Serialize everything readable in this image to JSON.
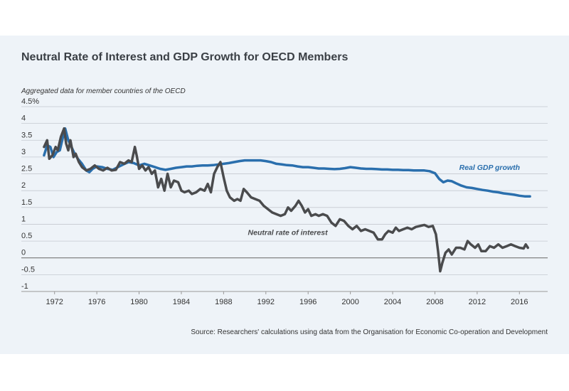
{
  "chart_data": {
    "type": "line",
    "title": "Neutral Rate of Interest and GDP Growth for OECD Members",
    "subtitle": "Aggregated data for member countries of the OECD",
    "source": "Source: Researchers' calculations using data from the Organisation for Economic Co-operation and Development",
    "xlabel": "",
    "ylabel": "",
    "xlim": [
      1970,
      2018
    ],
    "ylim": [
      -1,
      4.5
    ],
    "y_ticks": [
      {
        "value": 4.5,
        "label": "4.5%"
      },
      {
        "value": 4,
        "label": "4"
      },
      {
        "value": 3.5,
        "label": "3.5"
      },
      {
        "value": 3,
        "label": "3"
      },
      {
        "value": 2.5,
        "label": "2.5"
      },
      {
        "value": 2,
        "label": "2"
      },
      {
        "value": 1.5,
        "label": "1.5"
      },
      {
        "value": 1,
        "label": "1"
      },
      {
        "value": 0.5,
        "label": "0.5"
      },
      {
        "value": 0,
        "label": "0"
      },
      {
        "value": -0.5,
        "label": "-0.5"
      },
      {
        "value": -1,
        "label": "-1"
      }
    ],
    "x_ticks": [
      {
        "value": 1972,
        "label": "1972"
      },
      {
        "value": 1976,
        "label": "1976"
      },
      {
        "value": 1980,
        "label": "1980"
      },
      {
        "value": 1984,
        "label": "1984"
      },
      {
        "value": 1988,
        "label": "1988"
      },
      {
        "value": 1992,
        "label": "1992"
      },
      {
        "value": 1996,
        "label": "1996"
      },
      {
        "value": 2000,
        "label": "2000"
      },
      {
        "value": 2004,
        "label": "2004"
      },
      {
        "value": 2008,
        "label": "2008"
      },
      {
        "value": 2012,
        "label": "2012"
      },
      {
        "value": 2016,
        "label": "2016"
      }
    ],
    "grid": true,
    "series": [
      {
        "name": "Real GDP growth",
        "color": "#2a6fad",
        "points": [
          [
            1971.0,
            3.05
          ],
          [
            1971.3,
            3.35
          ],
          [
            1971.6,
            3.3
          ],
          [
            1971.9,
            3.0
          ],
          [
            1972.2,
            3.15
          ],
          [
            1972.5,
            3.2
          ],
          [
            1972.8,
            3.6
          ],
          [
            1973.0,
            3.85
          ],
          [
            1973.3,
            3.5
          ],
          [
            1973.6,
            3.3
          ],
          [
            1973.9,
            3.1
          ],
          [
            1974.2,
            2.95
          ],
          [
            1974.6,
            2.8
          ],
          [
            1975.0,
            2.6
          ],
          [
            1975.3,
            2.55
          ],
          [
            1975.6,
            2.65
          ],
          [
            1976.0,
            2.72
          ],
          [
            1976.5,
            2.7
          ],
          [
            1977.0,
            2.65
          ],
          [
            1977.5,
            2.62
          ],
          [
            1978.0,
            2.7
          ],
          [
            1978.5,
            2.78
          ],
          [
            1979.0,
            2.85
          ],
          [
            1979.5,
            2.82
          ],
          [
            1980.0,
            2.75
          ],
          [
            1980.5,
            2.8
          ],
          [
            1981.0,
            2.75
          ],
          [
            1981.5,
            2.7
          ],
          [
            1982.0,
            2.65
          ],
          [
            1982.5,
            2.62
          ],
          [
            1983.0,
            2.65
          ],
          [
            1983.5,
            2.68
          ],
          [
            1984.0,
            2.7
          ],
          [
            1984.5,
            2.72
          ],
          [
            1985.0,
            2.72
          ],
          [
            1985.5,
            2.74
          ],
          [
            1986.0,
            2.75
          ],
          [
            1986.5,
            2.75
          ],
          [
            1987.0,
            2.76
          ],
          [
            1987.5,
            2.78
          ],
          [
            1988.0,
            2.8
          ],
          [
            1988.5,
            2.82
          ],
          [
            1989.0,
            2.85
          ],
          [
            1989.5,
            2.88
          ],
          [
            1990.0,
            2.9
          ],
          [
            1990.5,
            2.9
          ],
          [
            1991.0,
            2.9
          ],
          [
            1991.5,
            2.9
          ],
          [
            1992.0,
            2.88
          ],
          [
            1992.5,
            2.85
          ],
          [
            1993.0,
            2.8
          ],
          [
            1993.5,
            2.78
          ],
          [
            1994.0,
            2.76
          ],
          [
            1994.5,
            2.75
          ],
          [
            1995.0,
            2.72
          ],
          [
            1995.5,
            2.7
          ],
          [
            1996.0,
            2.7
          ],
          [
            1996.5,
            2.68
          ],
          [
            1997.0,
            2.66
          ],
          [
            1997.5,
            2.66
          ],
          [
            1998.0,
            2.65
          ],
          [
            1998.5,
            2.64
          ],
          [
            1999.0,
            2.65
          ],
          [
            1999.5,
            2.67
          ],
          [
            2000.0,
            2.7
          ],
          [
            2000.5,
            2.68
          ],
          [
            2001.0,
            2.66
          ],
          [
            2001.5,
            2.65
          ],
          [
            2002.0,
            2.65
          ],
          [
            2002.5,
            2.64
          ],
          [
            2003.0,
            2.63
          ],
          [
            2003.5,
            2.63
          ],
          [
            2004.0,
            2.62
          ],
          [
            2004.5,
            2.62
          ],
          [
            2005.0,
            2.61
          ],
          [
            2005.5,
            2.61
          ],
          [
            2006.0,
            2.6
          ],
          [
            2006.5,
            2.6
          ],
          [
            2007.0,
            2.6
          ],
          [
            2007.5,
            2.58
          ],
          [
            2008.0,
            2.52
          ],
          [
            2008.4,
            2.35
          ],
          [
            2008.8,
            2.25
          ],
          [
            2009.2,
            2.3
          ],
          [
            2009.6,
            2.28
          ],
          [
            2010.0,
            2.22
          ],
          [
            2010.5,
            2.15
          ],
          [
            2011.0,
            2.1
          ],
          [
            2011.5,
            2.08
          ],
          [
            2012.0,
            2.05
          ],
          [
            2012.5,
            2.02
          ],
          [
            2013.0,
            2.0
          ],
          [
            2013.5,
            1.97
          ],
          [
            2014.0,
            1.95
          ],
          [
            2014.5,
            1.92
          ],
          [
            2015.0,
            1.9
          ],
          [
            2015.5,
            1.88
          ],
          [
            2016.0,
            1.85
          ],
          [
            2016.5,
            1.83
          ],
          [
            2017.0,
            1.83
          ]
        ]
      },
      {
        "name": "Neutral rate of interest",
        "color": "#4a4b4d",
        "points": [
          [
            1971.0,
            3.3
          ],
          [
            1971.3,
            3.5
          ],
          [
            1971.5,
            2.95
          ],
          [
            1971.8,
            3.05
          ],
          [
            1972.1,
            3.3
          ],
          [
            1972.3,
            3.2
          ],
          [
            1972.6,
            3.6
          ],
          [
            1972.9,
            3.85
          ],
          [
            1973.1,
            3.4
          ],
          [
            1973.3,
            3.2
          ],
          [
            1973.5,
            3.5
          ],
          [
            1973.8,
            3.0
          ],
          [
            1974.0,
            3.1
          ],
          [
            1974.3,
            2.85
          ],
          [
            1974.6,
            2.7
          ],
          [
            1975.0,
            2.6
          ],
          [
            1975.4,
            2.65
          ],
          [
            1975.8,
            2.75
          ],
          [
            1976.2,
            2.65
          ],
          [
            1976.6,
            2.6
          ],
          [
            1977.0,
            2.68
          ],
          [
            1977.4,
            2.6
          ],
          [
            1977.8,
            2.62
          ],
          [
            1978.2,
            2.85
          ],
          [
            1978.6,
            2.8
          ],
          [
            1979.0,
            2.9
          ],
          [
            1979.3,
            2.85
          ],
          [
            1979.6,
            3.3
          ],
          [
            1979.8,
            3.0
          ],
          [
            1980.0,
            2.65
          ],
          [
            1980.3,
            2.75
          ],
          [
            1980.6,
            2.6
          ],
          [
            1980.9,
            2.7
          ],
          [
            1981.2,
            2.5
          ],
          [
            1981.5,
            2.6
          ],
          [
            1981.8,
            2.1
          ],
          [
            1982.1,
            2.35
          ],
          [
            1982.4,
            2.0
          ],
          [
            1982.7,
            2.5
          ],
          [
            1983.0,
            2.1
          ],
          [
            1983.3,
            2.3
          ],
          [
            1983.7,
            2.25
          ],
          [
            1984.0,
            2.0
          ],
          [
            1984.3,
            1.95
          ],
          [
            1984.7,
            2.0
          ],
          [
            1985.0,
            1.9
          ],
          [
            1985.4,
            1.95
          ],
          [
            1985.8,
            2.05
          ],
          [
            1986.2,
            2.0
          ],
          [
            1986.5,
            2.2
          ],
          [
            1986.8,
            1.95
          ],
          [
            1987.1,
            2.5
          ],
          [
            1987.4,
            2.7
          ],
          [
            1987.7,
            2.85
          ],
          [
            1988.0,
            2.4
          ],
          [
            1988.3,
            2.0
          ],
          [
            1988.6,
            1.8
          ],
          [
            1989.0,
            1.7
          ],
          [
            1989.3,
            1.75
          ],
          [
            1989.6,
            1.7
          ],
          [
            1989.9,
            2.05
          ],
          [
            1990.2,
            1.95
          ],
          [
            1990.6,
            1.8
          ],
          [
            1991.0,
            1.75
          ],
          [
            1991.4,
            1.7
          ],
          [
            1991.8,
            1.55
          ],
          [
            1992.2,
            1.45
          ],
          [
            1992.6,
            1.35
          ],
          [
            1993.0,
            1.3
          ],
          [
            1993.4,
            1.25
          ],
          [
            1993.8,
            1.3
          ],
          [
            1994.1,
            1.5
          ],
          [
            1994.4,
            1.4
          ],
          [
            1994.8,
            1.55
          ],
          [
            1995.1,
            1.7
          ],
          [
            1995.4,
            1.55
          ],
          [
            1995.7,
            1.35
          ],
          [
            1996.0,
            1.45
          ],
          [
            1996.3,
            1.25
          ],
          [
            1996.7,
            1.3
          ],
          [
            1997.0,
            1.25
          ],
          [
            1997.4,
            1.3
          ],
          [
            1997.8,
            1.25
          ],
          [
            1998.2,
            1.05
          ],
          [
            1998.6,
            0.95
          ],
          [
            1999.0,
            1.15
          ],
          [
            1999.4,
            1.1
          ],
          [
            1999.8,
            0.95
          ],
          [
            2000.2,
            0.85
          ],
          [
            2000.6,
            0.95
          ],
          [
            2001.0,
            0.8
          ],
          [
            2001.4,
            0.85
          ],
          [
            2001.8,
            0.8
          ],
          [
            2002.2,
            0.75
          ],
          [
            2002.6,
            0.55
          ],
          [
            2003.0,
            0.55
          ],
          [
            2003.3,
            0.7
          ],
          [
            2003.6,
            0.8
          ],
          [
            2004.0,
            0.75
          ],
          [
            2004.3,
            0.9
          ],
          [
            2004.6,
            0.8
          ],
          [
            2005.0,
            0.85
          ],
          [
            2005.4,
            0.9
          ],
          [
            2005.8,
            0.85
          ],
          [
            2006.2,
            0.92
          ],
          [
            2006.6,
            0.95
          ],
          [
            2007.0,
            0.98
          ],
          [
            2007.4,
            0.92
          ],
          [
            2007.8,
            0.95
          ],
          [
            2008.1,
            0.7
          ],
          [
            2008.3,
            0.2
          ],
          [
            2008.5,
            -0.4
          ],
          [
            2008.7,
            -0.15
          ],
          [
            2009.0,
            0.15
          ],
          [
            2009.3,
            0.25
          ],
          [
            2009.6,
            0.1
          ],
          [
            2010.0,
            0.3
          ],
          [
            2010.4,
            0.3
          ],
          [
            2010.8,
            0.25
          ],
          [
            2011.1,
            0.5
          ],
          [
            2011.4,
            0.4
          ],
          [
            2011.8,
            0.3
          ],
          [
            2012.1,
            0.4
          ],
          [
            2012.4,
            0.2
          ],
          [
            2012.8,
            0.2
          ],
          [
            2013.2,
            0.35
          ],
          [
            2013.6,
            0.3
          ],
          [
            2014.0,
            0.4
          ],
          [
            2014.4,
            0.3
          ],
          [
            2014.8,
            0.35
          ],
          [
            2015.2,
            0.4
          ],
          [
            2015.6,
            0.35
          ],
          [
            2016.0,
            0.3
          ],
          [
            2016.4,
            0.28
          ],
          [
            2016.6,
            0.4
          ],
          [
            2016.8,
            0.3
          ]
        ]
      }
    ],
    "annotations": [
      {
        "text": "Real GDP growth",
        "series": "Real GDP growth",
        "x": 2010.3,
        "y": 2.62
      },
      {
        "text": "Neutral rate of interest",
        "series": "Neutral rate of interest",
        "x": 1990.3,
        "y": 0.68
      }
    ]
  }
}
